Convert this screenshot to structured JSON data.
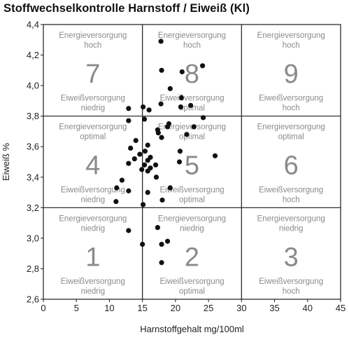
{
  "chart_data": {
    "type": "scatter",
    "title": "Stoffwechselkontrolle Harnstoff / Eiweiß (Kl)",
    "xlabel": "Harnstoffgehalt mg/100ml",
    "ylabel": "Eiweiß %",
    "xlim": [
      0,
      45
    ],
    "ylim": [
      2.6,
      4.4
    ],
    "x_ticks": [
      "0",
      "5",
      "10",
      "15",
      "20",
      "25",
      "30",
      "35",
      "40",
      "45"
    ],
    "y_ticks": [
      "2,6",
      "2,8",
      "3,0",
      "3,2",
      "3,4",
      "3,6",
      "3,8",
      "4,0",
      "4,2",
      "4,4"
    ],
    "grid": false,
    "divider_x": [
      15,
      30
    ],
    "divider_y": [
      3.2,
      3.8
    ],
    "zones": [
      {
        "number": "7",
        "x_range": [
          0,
          15
        ],
        "y_range": [
          3.8,
          4.4
        ],
        "top_line1": "Energieversorgung",
        "top_line2": "hoch",
        "bottom_line1": "Eiweißversorgung",
        "bottom_line2": "niedrig"
      },
      {
        "number": "8",
        "x_range": [
          15,
          30
        ],
        "y_range": [
          3.8,
          4.4
        ],
        "top_line1": "Energieversorgung",
        "top_line2": "hoch",
        "bottom_line1": "Eiweißversorgung",
        "bottom_line2": "optimal"
      },
      {
        "number": "9",
        "x_range": [
          30,
          45
        ],
        "y_range": [
          3.8,
          4.4
        ],
        "top_line1": "Energieversorgung",
        "top_line2": "hoch",
        "bottom_line1": "Eiweißversorgung",
        "bottom_line2": "hoch"
      },
      {
        "number": "4",
        "x_range": [
          0,
          15
        ],
        "y_range": [
          3.2,
          3.8
        ],
        "top_line1": "Energieversorgung",
        "top_line2": "optimal",
        "bottom_line1": "Eiweißversorgung",
        "bottom_line2": "niedrig"
      },
      {
        "number": "5",
        "x_range": [
          15,
          30
        ],
        "y_range": [
          3.2,
          3.8
        ],
        "top_line1": "Energieversorgung",
        "top_line2": "optimal",
        "bottom_line1": "Eiweißversorgung",
        "bottom_line2": "optimal"
      },
      {
        "number": "6",
        "x_range": [
          30,
          45
        ],
        "y_range": [
          3.2,
          3.8
        ],
        "top_line1": "Energieversorgung",
        "top_line2": "optimal",
        "bottom_line1": "Eiweißversorgung",
        "bottom_line2": "hoch"
      },
      {
        "number": "1",
        "x_range": [
          0,
          15
        ],
        "y_range": [
          2.6,
          3.2
        ],
        "top_line1": "Energieversorgung",
        "top_line2": "niedrig",
        "bottom_line1": "Eiweißversorgung",
        "bottom_line2": "niedrig"
      },
      {
        "number": "2",
        "x_range": [
          15,
          30
        ],
        "y_range": [
          2.6,
          3.2
        ],
        "top_line1": "Energieversorgung",
        "top_line2": "niedrig",
        "bottom_line1": "Eiweißversorgung",
        "bottom_line2": "optimal"
      },
      {
        "number": "3",
        "x_range": [
          30,
          45
        ],
        "y_range": [
          2.6,
          3.2
        ],
        "top_line1": "Energieversorgung",
        "top_line2": "niedrig",
        "bottom_line1": "Eiweißversorgung",
        "bottom_line2": "hoch"
      }
    ],
    "points": [
      [
        17.8,
        4.29
      ],
      [
        24.1,
        4.13
      ],
      [
        17.9,
        4.1
      ],
      [
        21.0,
        4.09
      ],
      [
        19.2,
        3.98
      ],
      [
        20.9,
        3.92
      ],
      [
        22.3,
        3.87
      ],
      [
        15.1,
        3.86
      ],
      [
        12.9,
        3.85
      ],
      [
        16.0,
        3.84
      ],
      [
        17.8,
        3.88
      ],
      [
        20.8,
        3.86
      ],
      [
        15.3,
        3.78
      ],
      [
        12.9,
        3.77
      ],
      [
        19.0,
        3.75
      ],
      [
        24.2,
        3.79
      ],
      [
        22.8,
        3.73
      ],
      [
        18.8,
        3.73
      ],
      [
        17.3,
        3.71
      ],
      [
        17.4,
        3.69
      ],
      [
        21.7,
        3.68
      ],
      [
        17.9,
        3.66
      ],
      [
        14.0,
        3.64
      ],
      [
        15.8,
        3.61
      ],
      [
        13.2,
        3.59
      ],
      [
        20.7,
        3.57
      ],
      [
        15.4,
        3.57
      ],
      [
        14.6,
        3.55
      ],
      [
        16.2,
        3.53
      ],
      [
        26.0,
        3.54
      ],
      [
        13.8,
        3.52
      ],
      [
        15.8,
        3.51
      ],
      [
        20.6,
        3.5
      ],
      [
        12.9,
        3.49
      ],
      [
        15.3,
        3.48
      ],
      [
        17.0,
        3.48
      ],
      [
        16.2,
        3.46
      ],
      [
        14.9,
        3.45
      ],
      [
        15.8,
        3.44
      ],
      [
        17.1,
        3.4
      ],
      [
        11.9,
        3.38
      ],
      [
        19.2,
        3.33
      ],
      [
        11.1,
        3.33
      ],
      [
        15.8,
        3.3
      ],
      [
        12.9,
        3.31
      ],
      [
        18.0,
        3.25
      ],
      [
        11.0,
        3.24
      ],
      [
        15.1,
        3.22
      ],
      [
        17.3,
        3.07
      ],
      [
        12.9,
        3.05
      ],
      [
        18.8,
        2.98
      ],
      [
        17.9,
        2.96
      ],
      [
        15.0,
        2.96
      ],
      [
        17.9,
        2.84
      ]
    ]
  }
}
